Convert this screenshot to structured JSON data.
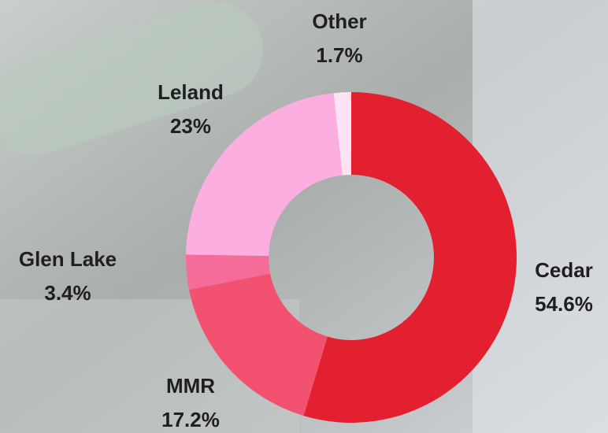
{
  "chart_data": {
    "type": "donut",
    "categories": [
      "Cedar",
      "MMR",
      "Glen Lake",
      "Leland",
      "Other"
    ],
    "values": [
      54.6,
      17.2,
      3.4,
      23,
      1.7
    ],
    "value_labels": [
      "54.6%",
      "17.2%",
      "3.4%",
      "23%",
      "1.7%"
    ],
    "colors": [
      "#e32030",
      "#f2526f",
      "#f56c98",
      "#fdaee0",
      "#fde3f3"
    ]
  }
}
